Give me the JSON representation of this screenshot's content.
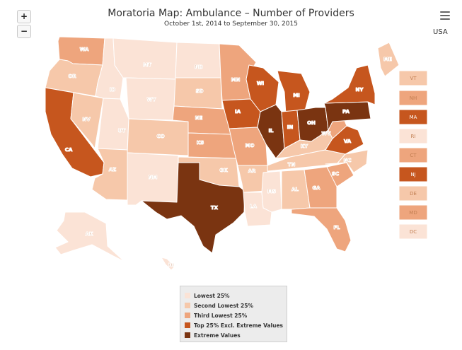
{
  "title": "Moratoria Map: Ambulance – Number of Providers",
  "subtitle": "October 1st, 2014 to September 30, 2015",
  "region_label": "USA",
  "controls": {
    "zoom_in": "+",
    "zoom_out": "−",
    "menu_icon": "hamburger-menu-icon"
  },
  "colors": {
    "c0": "#fbe3d6",
    "c1": "#f6c8aa",
    "c2": "#eea57d",
    "c3": "#c6561e",
    "c4": "#7a3411"
  },
  "legend": [
    {
      "label": "Lowest 25%",
      "class": "c0"
    },
    {
      "label": "Second Lowest 25%",
      "class": "c1"
    },
    {
      "label": "Third Lowest 25%",
      "class": "c2"
    },
    {
      "label": "Top 25% Excl. Extreme Values",
      "class": "c3"
    },
    {
      "label": "Extreme Values",
      "class": "c4"
    }
  ],
  "states": [
    {
      "code": "WA",
      "class": "c2"
    },
    {
      "code": "OR",
      "class": "c1"
    },
    {
      "code": "CA",
      "class": "c3"
    },
    {
      "code": "NV",
      "class": "c1"
    },
    {
      "code": "ID",
      "class": "c0"
    },
    {
      "code": "MT",
      "class": "c0"
    },
    {
      "code": "WY",
      "class": "c0"
    },
    {
      "code": "UT",
      "class": "c0"
    },
    {
      "code": "AZ",
      "class": "c1"
    },
    {
      "code": "CO",
      "class": "c1"
    },
    {
      "code": "NM",
      "class": "c0"
    },
    {
      "code": "ND",
      "class": "c0"
    },
    {
      "code": "SD",
      "class": "c1"
    },
    {
      "code": "NE",
      "class": "c2"
    },
    {
      "code": "KS",
      "class": "c2"
    },
    {
      "code": "OK",
      "class": "c1"
    },
    {
      "code": "TX",
      "class": "c4"
    },
    {
      "code": "MN",
      "class": "c2"
    },
    {
      "code": "IA",
      "class": "c3"
    },
    {
      "code": "MO",
      "class": "c2"
    },
    {
      "code": "AR",
      "class": "c1"
    },
    {
      "code": "LA",
      "class": "c0"
    },
    {
      "code": "WI",
      "class": "c3"
    },
    {
      "code": "IL",
      "class": "c4"
    },
    {
      "code": "MS",
      "class": "c0"
    },
    {
      "code": "MI",
      "class": "c3"
    },
    {
      "code": "IN",
      "class": "c3"
    },
    {
      "code": "OH",
      "class": "c4"
    },
    {
      "code": "KY",
      "class": "c1"
    },
    {
      "code": "TN",
      "class": "c1"
    },
    {
      "code": "AL",
      "class": "c1"
    },
    {
      "code": "GA",
      "class": "c2"
    },
    {
      "code": "FL",
      "class": "c2"
    },
    {
      "code": "SC",
      "class": "c2"
    },
    {
      "code": "NC",
      "class": "c1"
    },
    {
      "code": "VA",
      "class": "c3"
    },
    {
      "code": "WV",
      "class": "c2"
    },
    {
      "code": "PA",
      "class": "c4"
    },
    {
      "code": "NY",
      "class": "c3"
    },
    {
      "code": "ME",
      "class": "c1"
    },
    {
      "code": "AK",
      "class": "c0"
    },
    {
      "code": "HI",
      "class": "c0"
    }
  ],
  "small_states": [
    {
      "code": "VT",
      "class": "c1"
    },
    {
      "code": "NH",
      "class": "c2"
    },
    {
      "code": "MA",
      "class": "c3"
    },
    {
      "code": "RI",
      "class": "c0"
    },
    {
      "code": "CT",
      "class": "c2"
    },
    {
      "code": "NJ",
      "class": "c3"
    },
    {
      "code": "DE",
      "class": "c1"
    },
    {
      "code": "MD",
      "class": "c2"
    },
    {
      "code": "DC",
      "class": "c0"
    }
  ]
}
